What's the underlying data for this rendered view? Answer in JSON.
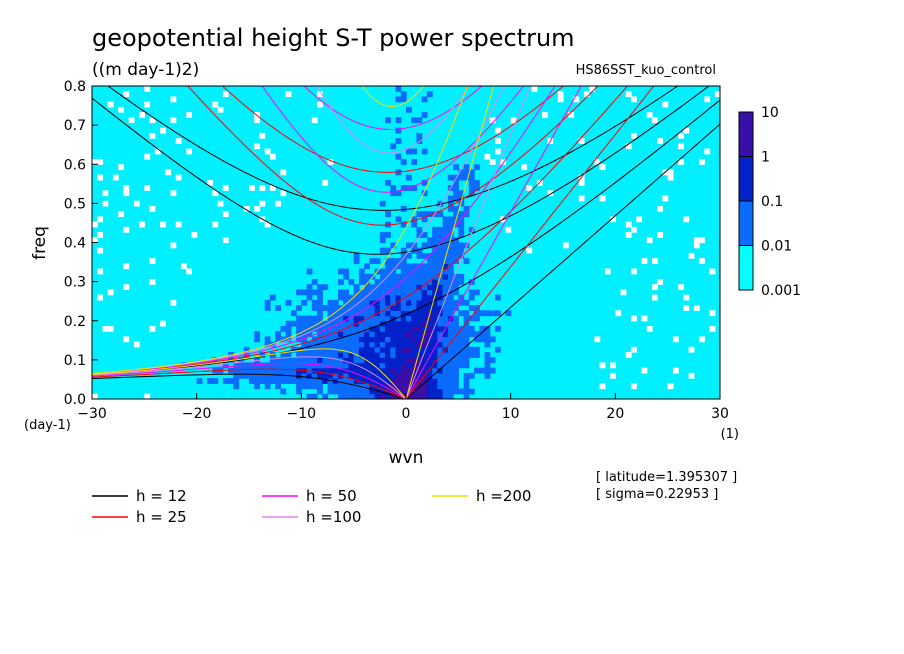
{
  "chart_data": {
    "type": "heatmap",
    "title": "geopotential height S-T power spectrum",
    "subtitle": "((m day-1)2)",
    "run_label": "HS86SST_kuo_control",
    "xlabel": "wvn",
    "ylabel": "freq",
    "x_unit": "(1)",
    "y_unit": "(day-1)",
    "xlim": [
      -30,
      30
    ],
    "ylim": [
      0,
      0.8
    ],
    "xticks": [
      -30,
      -20,
      -10,
      0,
      10,
      20,
      30
    ],
    "yticks": [
      0.0,
      0.1,
      0.2,
      0.3,
      0.4,
      0.5,
      0.6,
      0.7,
      0.8
    ],
    "colorbar": {
      "labels": [
        "0.001",
        "0.01",
        "0.1",
        "1",
        "10"
      ],
      "colors": [
        "#00ffff",
        "#0a6cff",
        "#0022c8",
        "#3a0ea8"
      ]
    },
    "background_color": "#00f0ff",
    "grid": false,
    "legend_position": "bottom",
    "dispersion_curves": [
      {
        "label": "h = 12",
        "h": 12,
        "color": "#000000"
      },
      {
        "label": "h = 25",
        "h": 25,
        "color": "#ff0000"
      },
      {
        "label": "h = 50",
        "h": 50,
        "color": "#ff00ff"
      },
      {
        "label": "h =100",
        "h": 100,
        "color": "#dd88ee"
      },
      {
        "label": "h =200",
        "h": 200,
        "color": "#f0e000"
      }
    ],
    "annotations": [
      "[ latitude=1.395307 ]",
      "[ sigma=0.22953 ]"
    ]
  }
}
